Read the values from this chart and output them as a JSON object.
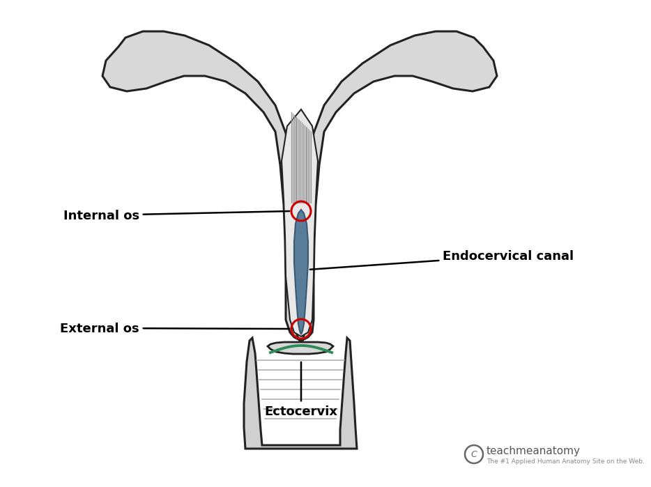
{
  "bg_color": "#ffffff",
  "uterus_fill": "#d8d8d8",
  "uterus_stroke": "#222222",
  "canal_fill": "#5a7d9a",
  "canal_stroke": "#3a5a72",
  "inner_fill": "#e8e8e8",
  "green_line_color": "#2e8b57",
  "red_circle_color": "#cc0000",
  "label_internal_os": "Internal os",
  "label_external_os": "External os",
  "label_canal": "Endocervical canal",
  "label_ectocervix": "Ectocervix",
  "watermark_main": "teachmeanatomy",
  "watermark_sub": "The #1 Applied Human Anatomy Site on the Web.",
  "label_fontsize": 13,
  "label_fontweight": "bold"
}
